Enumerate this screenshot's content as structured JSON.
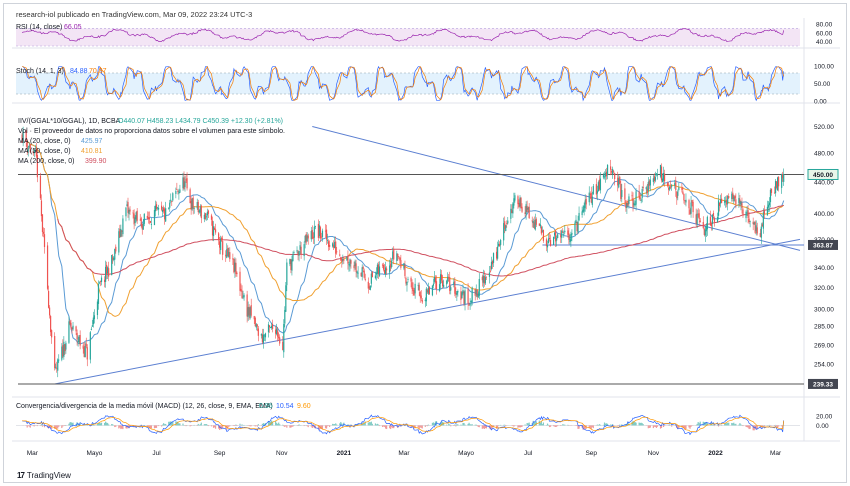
{
  "caption": "research-iol publicado en TradingView.com, Mar 09, 2022 23:24 UTC-3",
  "brand": {
    "logo": "17",
    "name": "TradingView"
  },
  "colors": {
    "up": "#26a69a",
    "down": "#ef5350",
    "rsi": "#9c27b0",
    "rsi_band": "#f3e5f5",
    "stoch_k": "#2962ff",
    "stoch_d": "#f57c00",
    "stoch_band": "#e3f2fd",
    "ma20": "#5b9bd5",
    "ma50": "#f0a030",
    "ma200": "#d05060",
    "trend": "#5b7fd1",
    "hline": "#555555",
    "macd": "#2962ff",
    "macd_signal": "#ff9800",
    "label_bg": "#434651"
  },
  "rsi_panel": {
    "legend_name": "RSI (14, close)",
    "legend_value": "66.05",
    "scale": [
      {
        "value": 80,
        "label": "80.00"
      },
      {
        "value": 60,
        "label": "60.00"
      },
      {
        "value": 40,
        "label": "40.00"
      }
    ]
  },
  "stoch_panel": {
    "legend_name": "Stoch (14, 1, 3)",
    "k_value": "84.88",
    "d_value": "70.37",
    "scale": [
      {
        "value": 100,
        "label": "100.00"
      },
      {
        "value": 50,
        "label": "50.00"
      },
      {
        "value": 0,
        "label": "0.00"
      }
    ]
  },
  "main_panel": {
    "legend_symbol": "IIV/(GGAL*10/GGAL), 1D, BCBA",
    "legend_ohlc": "O440.07 H458.23 L434.79 C450.39 +12.30 (+2.81%)",
    "legend_warning": "Vol · El proveedor de datos no proporciona datos sobre el volumen para este símbolo.",
    "ma_legends": [
      {
        "name": "MA (20, close, 0)",
        "value": "425.97"
      },
      {
        "name": "MA (50, close, 0)",
        "value": "410.81"
      },
      {
        "name": "MA (200, close, 0)",
        "value": "399.90"
      }
    ],
    "scale": [
      {
        "value": 520,
        "label": "520.00"
      },
      {
        "value": 480,
        "label": "480.00"
      },
      {
        "value": 440,
        "label": "440.00"
      },
      {
        "value": 400,
        "label": "400.00"
      },
      {
        "value": 370,
        "label": "370.00"
      },
      {
        "value": 340,
        "label": "340.00"
      },
      {
        "value": 320,
        "label": "320.00"
      },
      {
        "value": 300,
        "label": "300.00"
      },
      {
        "value": 285,
        "label": "285.00"
      },
      {
        "value": 269,
        "label": "269.00"
      },
      {
        "value": 254,
        "label": "254.00"
      }
    ],
    "price_labels": [
      {
        "value": 450,
        "label": "450.00"
      },
      {
        "value": 363.87,
        "label": "363.87"
      },
      {
        "value": 239.33,
        "label": "239.33"
      }
    ]
  },
  "macd_panel": {
    "legend_name": "Convergencia/divergencia de la media móvil (MACD) (12, 26, close, 9, EMA, EMA)",
    "hist_value": "0.95",
    "macd_value": "10.54",
    "signal_value": "9.60",
    "scale": [
      {
        "value": 20,
        "label": "20.00"
      },
      {
        "value": 0,
        "label": "0.00"
      }
    ]
  },
  "x_axis": {
    "ticks": [
      {
        "label": "Mar",
        "bold": false
      },
      {
        "label": "Mayo",
        "bold": false
      },
      {
        "label": "Jul",
        "bold": false
      },
      {
        "label": "Sep",
        "bold": false
      },
      {
        "label": "Nov",
        "bold": false
      },
      {
        "label": "2021",
        "bold": true
      },
      {
        "label": "Mar",
        "bold": false
      },
      {
        "label": "Mayo",
        "bold": false
      },
      {
        "label": "Jul",
        "bold": false
      },
      {
        "label": "Sep",
        "bold": false
      },
      {
        "label": "Nov",
        "bold": false
      },
      {
        "label": "2022",
        "bold": true
      },
      {
        "label": "Mar",
        "bold": false
      }
    ]
  },
  "chart_data": {
    "type": "line",
    "title": "IIV/(GGAL*10/GGAL), 1D, BCBA",
    "x": [
      "Mar",
      "Mayo",
      "Jul",
      "Sep",
      "Nov",
      "2021",
      "Mar",
      "Mayo",
      "Jul",
      "Sep",
      "Nov",
      "2022",
      "Mar"
    ],
    "y_scale": "log",
    "ylim": [
      235,
      540
    ],
    "close_path": [
      {
        "x": "2020-02-20",
        "y": 508
      },
      {
        "x": "2020-03-05",
        "y": 470
      },
      {
        "x": "2020-03-16",
        "y": 320
      },
      {
        "x": "2020-03-23",
        "y": 245
      },
      {
        "x": "2020-04-07",
        "y": 285
      },
      {
        "x": "2020-04-24",
        "y": 262
      },
      {
        "x": "2020-05-05",
        "y": 318
      },
      {
        "x": "2020-05-20",
        "y": 350
      },
      {
        "x": "2020-06-01",
        "y": 405
      },
      {
        "x": "2020-06-15",
        "y": 388
      },
      {
        "x": "2020-06-29",
        "y": 400
      },
      {
        "x": "2020-07-10",
        "y": 398
      },
      {
        "x": "2020-07-20",
        "y": 425
      },
      {
        "x": "2020-07-28",
        "y": 440
      },
      {
        "x": "2020-08-05",
        "y": 410
      },
      {
        "x": "2020-08-20",
        "y": 395
      },
      {
        "x": "2020-09-01",
        "y": 365
      },
      {
        "x": "2020-09-15",
        "y": 340
      },
      {
        "x": "2020-09-28",
        "y": 300
      },
      {
        "x": "2020-10-12",
        "y": 275
      },
      {
        "x": "2020-10-26",
        "y": 285
      },
      {
        "x": "2020-11-02",
        "y": 268
      },
      {
        "x": "2020-11-06",
        "y": 340
      },
      {
        "x": "2020-11-20",
        "y": 360
      },
      {
        "x": "2020-12-04",
        "y": 380
      },
      {
        "x": "2020-12-14",
        "y": 372
      },
      {
        "x": "2020-12-28",
        "y": 355
      },
      {
        "x": "2021-01-11",
        "y": 345
      },
      {
        "x": "2021-01-25",
        "y": 325
      },
      {
        "x": "2021-02-08",
        "y": 340
      },
      {
        "x": "2021-02-22",
        "y": 355
      },
      {
        "x": "2021-03-08",
        "y": 320
      },
      {
        "x": "2021-03-22",
        "y": 310
      },
      {
        "x": "2021-04-05",
        "y": 330
      },
      {
        "x": "2021-04-19",
        "y": 320
      },
      {
        "x": "2021-05-03",
        "y": 308
      },
      {
        "x": "2021-05-17",
        "y": 325
      },
      {
        "x": "2021-05-31",
        "y": 355
      },
      {
        "x": "2021-06-10",
        "y": 395
      },
      {
        "x": "2021-06-21",
        "y": 420
      },
      {
        "x": "2021-07-05",
        "y": 390
      },
      {
        "x": "2021-07-19",
        "y": 372
      },
      {
        "x": "2021-08-02",
        "y": 370
      },
      {
        "x": "2021-08-16",
        "y": 382
      },
      {
        "x": "2021-08-30",
        "y": 420
      },
      {
        "x": "2021-09-13",
        "y": 445
      },
      {
        "x": "2021-09-20",
        "y": 465
      },
      {
        "x": "2021-09-27",
        "y": 440
      },
      {
        "x": "2021-10-04",
        "y": 410
      },
      {
        "x": "2021-10-18",
        "y": 420
      },
      {
        "x": "2021-11-01",
        "y": 445
      },
      {
        "x": "2021-11-08",
        "y": 455
      },
      {
        "x": "2021-11-22",
        "y": 430
      },
      {
        "x": "2021-12-06",
        "y": 410
      },
      {
        "x": "2021-12-13",
        "y": 395
      },
      {
        "x": "2021-12-20",
        "y": 380
      },
      {
        "x": "2022-01-03",
        "y": 405
      },
      {
        "x": "2022-01-17",
        "y": 430
      },
      {
        "x": "2022-01-31",
        "y": 395
      },
      {
        "x": "2022-02-07",
        "y": 385
      },
      {
        "x": "2022-02-14",
        "y": 380
      },
      {
        "x": "2022-02-21",
        "y": 410
      },
      {
        "x": "2022-03-01",
        "y": 438
      },
      {
        "x": "2022-03-09",
        "y": 450.39
      }
    ],
    "last_bar": {
      "open": 440.07,
      "high": 458.23,
      "low": 434.79,
      "close": 450.39
    },
    "ma_last_values": {
      "ma20": 425.97,
      "ma50": 410.81,
      "ma200": 399.9
    },
    "horizontal_levels": [
      450.0,
      363.87,
      239.33
    ],
    "trendlines": [
      {
        "from": {
          "x": "2020-03-23",
          "y": 239.33
        },
        "to": {
          "x": "2022-03-25",
          "y": 370
        }
      },
      {
        "from": {
          "x": "2020-12-01",
          "y": 520
        },
        "to": {
          "x": "2022-03-25",
          "y": 358
        }
      }
    ],
    "rsi": {
      "last": 66.05,
      "range": [
        30,
        85
      ]
    },
    "stoch": {
      "k_last": 84.88,
      "d_last": 70.37,
      "range": [
        0,
        100
      ]
    },
    "macd": {
      "histogram": 0.95,
      "macd": 10.54,
      "signal": 9.6
    }
  }
}
